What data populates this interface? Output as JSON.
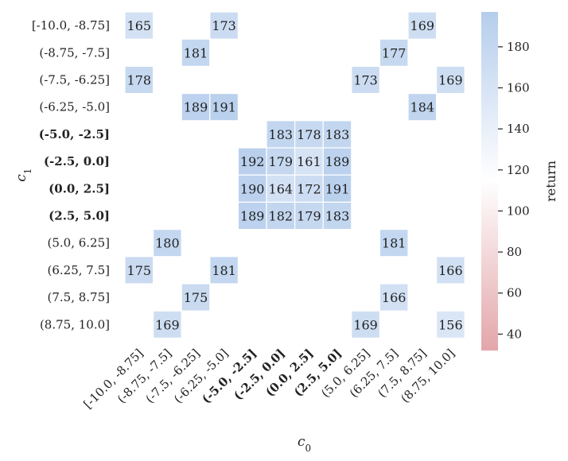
{
  "chart_data": {
    "type": "heatmap",
    "x_categories": [
      "[-10.0, -8.75]",
      "(-8.75, -7.5]",
      "(-7.5, -6.25]",
      "(-6.25, -5.0]",
      "(-5.0, -2.5]",
      "(-2.5, 0.0]",
      "(0.0, 2.5]",
      "(2.5, 5.0]",
      "(5.0, 6.25]",
      "(6.25, 7.5]",
      "(7.5, 8.75]",
      "(8.75, 10.0]"
    ],
    "y_categories": [
      "[-10.0, -8.75]",
      "(-8.75, -7.5]",
      "(-7.5, -6.25]",
      "(-6.25, -5.0]",
      "(-5.0, -2.5]",
      "(-2.5, 0.0]",
      "(0.0, 2.5]",
      "(2.5, 5.0]",
      "(5.0, 6.25]",
      "(6.25, 7.5]",
      "(7.5, 8.75]",
      "(8.75, 10.0]"
    ],
    "bold_categories": [
      "(-5.0, -2.5]",
      "(-2.5, 0.0]",
      "(0.0, 2.5]",
      "(2.5, 5.0]"
    ],
    "values": [
      [
        165,
        null,
        null,
        173,
        null,
        null,
        null,
        null,
        null,
        null,
        169,
        null
      ],
      [
        null,
        null,
        181,
        null,
        null,
        null,
        null,
        null,
        null,
        177,
        null,
        null
      ],
      [
        178,
        null,
        null,
        null,
        null,
        null,
        null,
        null,
        173,
        null,
        null,
        169
      ],
      [
        null,
        null,
        189,
        191,
        null,
        null,
        null,
        null,
        null,
        null,
        184,
        null
      ],
      [
        null,
        null,
        null,
        null,
        null,
        183,
        178,
        183,
        null,
        null,
        null,
        null
      ],
      [
        null,
        null,
        null,
        null,
        192,
        179,
        161,
        189,
        null,
        null,
        null,
        null
      ],
      [
        null,
        null,
        null,
        null,
        190,
        164,
        172,
        191,
        null,
        null,
        null,
        null
      ],
      [
        null,
        null,
        null,
        null,
        189,
        182,
        179,
        183,
        null,
        null,
        null,
        null
      ],
      [
        null,
        180,
        null,
        null,
        null,
        null,
        null,
        null,
        null,
        181,
        null,
        null
      ],
      [
        175,
        null,
        null,
        181,
        null,
        null,
        null,
        null,
        null,
        null,
        null,
        166
      ],
      [
        null,
        null,
        175,
        null,
        null,
        null,
        null,
        null,
        null,
        166,
        null,
        null
      ],
      [
        null,
        169,
        null,
        null,
        null,
        null,
        null,
        null,
        169,
        null,
        null,
        156
      ]
    ],
    "xlabel": "c0",
    "ylabel": "c1",
    "colorbar": {
      "label": "return",
      "min": 32,
      "max": 197,
      "center": 115,
      "ticks": [
        40,
        60,
        80,
        100,
        120,
        140,
        160,
        180
      ],
      "low_color": "#e3a6aa",
      "mid_color": "#ffffff",
      "high_color": "#b5cdec"
    }
  }
}
